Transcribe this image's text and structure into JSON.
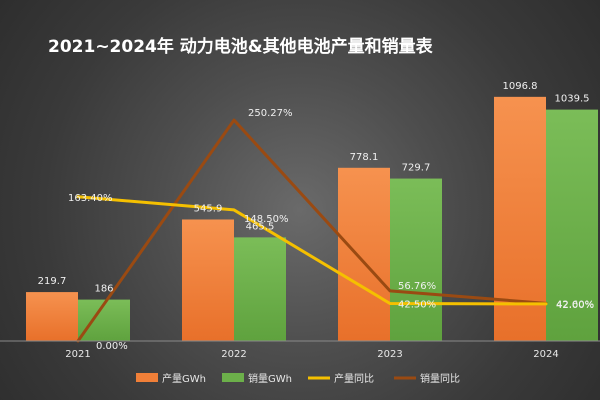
{
  "chart_data": {
    "type": "bar",
    "title": "2021~2024年 动力电池&其他电池产量和销量表",
    "categories": [
      "2021",
      "2022",
      "2023",
      "2024"
    ],
    "series": [
      {
        "name": "产量GWh",
        "kind": "bar",
        "axis": "left",
        "color": "#f07f38",
        "values": [
          219.7,
          545.9,
          778.1,
          1096.8
        ],
        "labels": [
          "219.7",
          "545.9",
          "778.1",
          "1096.8"
        ]
      },
      {
        "name": "销量GWh",
        "kind": "bar",
        "axis": "left",
        "color": "#6cb04a",
        "values": [
          186,
          465.5,
          729.7,
          1039.5
        ],
        "labels": [
          "186",
          "465.5",
          "729.7",
          "1039.5"
        ]
      },
      {
        "name": "产量同比",
        "kind": "line",
        "axis": "right",
        "color": "#f5c000",
        "values": [
          163.4,
          148.5,
          42.5,
          42.0
        ],
        "labels": [
          "163.40%",
          "148.50%",
          "42.50%",
          "42.00%"
        ]
      },
      {
        "name": "销量同比",
        "kind": "line",
        "axis": "right",
        "color": "#9a4a12",
        "values": [
          0.0,
          250.27,
          56.76,
          42.6
        ],
        "labels": [
          "0.00%",
          "250.27%",
          "56.76%",
          "42.60%"
        ]
      }
    ],
    "ylim": [
      0,
      1150
    ],
    "y2lim": [
      0,
      290
    ],
    "grid": false,
    "legend": "bottom"
  }
}
